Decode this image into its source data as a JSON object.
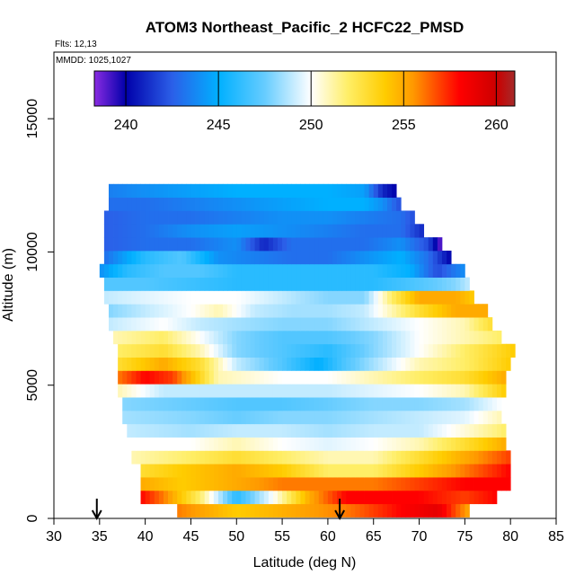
{
  "chart_data": {
    "type": "heatmap",
    "title": "ATOM3 Northeast_Pacific_2 HCFC22_PMSD",
    "annotations": [
      "Flts: 12,13",
      "MMDD: 1025,1027"
    ],
    "xlabel": "Latitude (deg N)",
    "ylabel": "Altitude (m)",
    "xlim": [
      30,
      85
    ],
    "ylim": [
      0,
      17500
    ],
    "xticks": [
      30,
      35,
      40,
      45,
      50,
      55,
      60,
      65,
      70,
      75,
      80,
      85
    ],
    "yticks": [
      0,
      5000,
      10000,
      15000
    ],
    "colorbar": {
      "range": [
        238.3,
        261.0
      ],
      "ticks": [
        240,
        245,
        250,
        255,
        260
      ],
      "stops": [
        {
          "v": 238.3,
          "c": "#8a2be2"
        },
        {
          "v": 240.0,
          "c": "#0000aa"
        },
        {
          "v": 242.5,
          "c": "#2b5fe8"
        },
        {
          "v": 245.0,
          "c": "#00b0ff"
        },
        {
          "v": 247.5,
          "c": "#66ccff"
        },
        {
          "v": 250.0,
          "c": "#ffffff"
        },
        {
          "v": 252.0,
          "c": "#ffee66"
        },
        {
          "v": 254.0,
          "c": "#ffcc00"
        },
        {
          "v": 255.5,
          "c": "#ff9900"
        },
        {
          "v": 258.0,
          "c": "#ff0000"
        },
        {
          "v": 260.0,
          "c": "#cc0000"
        },
        {
          "v": 261.0,
          "c": "#a52a2a"
        }
      ]
    },
    "arrows": [
      34.7,
      61.3
    ],
    "bands": [
      {
        "alt": 300,
        "lat0": 43.5,
        "lat1": 75.5,
        "pts": [
          [
            43.5,
            256
          ],
          [
            50,
            254
          ],
          [
            56,
            255
          ],
          [
            62,
            256
          ],
          [
            68,
            258
          ],
          [
            72,
            259
          ],
          [
            75.5,
            255
          ]
        ]
      },
      {
        "alt": 800,
        "lat0": 39.5,
        "lat1": 78.5,
        "pts": [
          [
            39.5,
            258
          ],
          [
            42,
            256
          ],
          [
            46,
            252
          ],
          [
            50,
            246
          ],
          [
            54,
            250
          ],
          [
            58,
            255
          ],
          [
            62,
            258
          ],
          [
            66,
            258
          ],
          [
            70,
            258
          ],
          [
            75,
            257
          ],
          [
            78.5,
            258
          ]
        ]
      },
      {
        "alt": 1300,
        "lat0": 39.5,
        "lat1": 80,
        "pts": [
          [
            39.5,
            255
          ],
          [
            44,
            254
          ],
          [
            50,
            255
          ],
          [
            55,
            256
          ],
          [
            60,
            256
          ],
          [
            65,
            256
          ],
          [
            70,
            257
          ],
          [
            75,
            258
          ],
          [
            80,
            258
          ]
        ]
      },
      {
        "alt": 1800,
        "lat0": 39.5,
        "lat1": 80,
        "pts": [
          [
            39.5,
            253
          ],
          [
            44,
            254
          ],
          [
            50,
            255
          ],
          [
            55,
            254
          ],
          [
            60,
            252
          ],
          [
            65,
            252
          ],
          [
            70,
            254
          ],
          [
            75,
            256
          ],
          [
            80,
            258
          ]
        ]
      },
      {
        "alt": 2300,
        "lat0": 38.5,
        "lat1": 80,
        "pts": [
          [
            38.5,
            251
          ],
          [
            45,
            252
          ],
          [
            50,
            253
          ],
          [
            55,
            252
          ],
          [
            60,
            251
          ],
          [
            65,
            251
          ],
          [
            70,
            253
          ],
          [
            75,
            255
          ],
          [
            80,
            257
          ]
        ]
      },
      {
        "alt": 2800,
        "lat0": 38,
        "lat1": 79.5,
        "pts": [
          [
            38,
            250
          ],
          [
            45,
            250
          ],
          [
            50,
            251
          ],
          [
            55,
            250
          ],
          [
            60,
            249.5
          ],
          [
            65,
            250
          ],
          [
            70,
            251
          ],
          [
            75,
            253
          ],
          [
            79.5,
            255
          ]
        ]
      },
      {
        "alt": 3300,
        "lat0": 38,
        "lat1": 79.5,
        "pts": [
          [
            38,
            249
          ],
          [
            45,
            248.5
          ],
          [
            50,
            249
          ],
          [
            55,
            249
          ],
          [
            60,
            248.5
          ],
          [
            65,
            249
          ],
          [
            70,
            249
          ],
          [
            75,
            250.5
          ],
          [
            79.5,
            252
          ]
        ]
      },
      {
        "alt": 3800,
        "lat0": 37.5,
        "lat1": 79,
        "pts": [
          [
            37.5,
            248.5
          ],
          [
            45,
            248
          ],
          [
            50,
            247.5
          ],
          [
            55,
            248
          ],
          [
            60,
            248
          ],
          [
            65,
            248.5
          ],
          [
            70,
            249
          ],
          [
            75,
            249.5
          ],
          [
            79,
            251
          ]
        ]
      },
      {
        "alt": 4300,
        "lat0": 37.5,
        "lat1": 79,
        "pts": [
          [
            37.5,
            248
          ],
          [
            45,
            247.5
          ],
          [
            50,
            247
          ],
          [
            55,
            247
          ],
          [
            60,
            247.5
          ],
          [
            65,
            248
          ],
          [
            70,
            248
          ],
          [
            75,
            248.5
          ],
          [
            79,
            250
          ]
        ]
      },
      {
        "alt": 4800,
        "lat0": 37,
        "lat1": 79.5,
        "pts": [
          [
            37,
            251
          ],
          [
            42,
            249
          ],
          [
            48,
            249
          ],
          [
            55,
            249
          ],
          [
            60,
            249
          ],
          [
            65,
            249.5
          ],
          [
            70,
            250
          ],
          [
            75,
            251
          ],
          [
            79.5,
            254
          ]
        ]
      },
      {
        "alt": 5300,
        "lat0": 37,
        "lat1": 79.5,
        "pts": [
          [
            37,
            256
          ],
          [
            40,
            258
          ],
          [
            43,
            257
          ],
          [
            48,
            251
          ],
          [
            55,
            250
          ],
          [
            60,
            250
          ],
          [
            65,
            251
          ],
          [
            70,
            252
          ],
          [
            75,
            253
          ],
          [
            79.5,
            255
          ]
        ]
      },
      {
        "alt": 5800,
        "lat0": 37,
        "lat1": 80,
        "pts": [
          [
            37,
            253
          ],
          [
            42,
            255
          ],
          [
            46,
            253
          ],
          [
            50,
            249
          ],
          [
            55,
            247
          ],
          [
            59,
            245
          ],
          [
            62,
            247
          ],
          [
            66,
            249
          ],
          [
            70,
            251
          ],
          [
            75,
            252
          ],
          [
            80,
            254
          ]
        ]
      },
      {
        "alt": 6300,
        "lat0": 37,
        "lat1": 80.5,
        "pts": [
          [
            37,
            252
          ],
          [
            42,
            253
          ],
          [
            46,
            251
          ],
          [
            50,
            248
          ],
          [
            55,
            247
          ],
          [
            60,
            246
          ],
          [
            65,
            248
          ],
          [
            70,
            250
          ],
          [
            75,
            252
          ],
          [
            80.5,
            254
          ]
        ]
      },
      {
        "alt": 6800,
        "lat0": 36.5,
        "lat1": 79,
        "pts": [
          [
            36.5,
            251
          ],
          [
            42,
            252
          ],
          [
            46,
            250
          ],
          [
            50,
            248
          ],
          [
            55,
            247
          ],
          [
            60,
            247
          ],
          [
            65,
            248
          ],
          [
            70,
            250
          ],
          [
            75,
            251
          ],
          [
            79,
            252
          ]
        ]
      },
      {
        "alt": 7300,
        "lat0": 36,
        "lat1": 78,
        "pts": [
          [
            36,
            249
          ],
          [
            42,
            250
          ],
          [
            46,
            249
          ],
          [
            50,
            248.5
          ],
          [
            55,
            248
          ],
          [
            60,
            248
          ],
          [
            65,
            249
          ],
          [
            70,
            250
          ],
          [
            75,
            251
          ],
          [
            78,
            253
          ]
        ]
      },
      {
        "alt": 7800,
        "lat0": 36,
        "lat1": 77.5,
        "pts": [
          [
            36,
            248
          ],
          [
            40,
            249
          ],
          [
            45,
            250
          ],
          [
            48,
            251
          ],
          [
            52,
            249
          ],
          [
            56,
            248.5
          ],
          [
            60,
            248.5
          ],
          [
            64,
            249
          ],
          [
            67,
            251
          ],
          [
            70,
            253
          ],
          [
            74,
            255
          ],
          [
            77.5,
            255
          ]
        ]
      },
      {
        "alt": 8300,
        "lat0": 35.5,
        "lat1": 76,
        "pts": [
          [
            35.5,
            249
          ],
          [
            40,
            249.5
          ],
          [
            45,
            250
          ],
          [
            50,
            250
          ],
          [
            55,
            249
          ],
          [
            60,
            248
          ],
          [
            64,
            248
          ],
          [
            67,
            252
          ],
          [
            70,
            255
          ],
          [
            74,
            255
          ],
          [
            76,
            254
          ]
        ]
      },
      {
        "alt": 8800,
        "lat0": 35.5,
        "lat1": 75.5,
        "pts": [
          [
            35.5,
            247
          ],
          [
            40,
            247
          ],
          [
            45,
            246.5
          ],
          [
            50,
            246
          ],
          [
            55,
            246
          ],
          [
            60,
            246
          ],
          [
            65,
            246
          ],
          [
            70,
            247
          ],
          [
            74,
            248
          ],
          [
            75.5,
            249
          ]
        ]
      },
      {
        "alt": 9300,
        "lat0": 35,
        "lat1": 75,
        "pts": [
          [
            35,
            244
          ],
          [
            38,
            246
          ],
          [
            42,
            247
          ],
          [
            46,
            247
          ],
          [
            50,
            246
          ],
          [
            55,
            246
          ],
          [
            60,
            246
          ],
          [
            65,
            246
          ],
          [
            69,
            245
          ],
          [
            72,
            242
          ],
          [
            75,
            244
          ]
        ]
      },
      {
        "alt": 9800,
        "lat0": 35.5,
        "lat1": 73.5,
        "pts": [
          [
            35.5,
            243
          ],
          [
            40,
            246
          ],
          [
            44,
            247
          ],
          [
            48,
            244
          ],
          [
            52,
            243.5
          ],
          [
            56,
            243
          ],
          [
            60,
            243
          ],
          [
            64,
            244
          ],
          [
            68,
            245
          ],
          [
            71,
            243
          ],
          [
            73.5,
            240
          ]
        ]
      },
      {
        "alt": 10300,
        "lat0": 35.5,
        "lat1": 72.5,
        "pts": [
          [
            35.5,
            242.5
          ],
          [
            40,
            243
          ],
          [
            45,
            243
          ],
          [
            50,
            244
          ],
          [
            53,
            241
          ],
          [
            56,
            243
          ],
          [
            60,
            243
          ],
          [
            64,
            243
          ],
          [
            68,
            244
          ],
          [
            71,
            242
          ],
          [
            72.5,
            238.5
          ]
        ]
      },
      {
        "alt": 10800,
        "lat0": 35.5,
        "lat1": 70.5,
        "pts": [
          [
            35.5,
            242.5
          ],
          [
            40,
            243
          ],
          [
            45,
            244
          ],
          [
            50,
            244.5
          ],
          [
            55,
            244
          ],
          [
            60,
            243.5
          ],
          [
            64,
            243
          ],
          [
            68,
            243
          ],
          [
            70.5,
            241
          ]
        ]
      },
      {
        "alt": 11300,
        "lat0": 35.5,
        "lat1": 69.5,
        "pts": [
          [
            35.5,
            242.5
          ],
          [
            40,
            243
          ],
          [
            45,
            243
          ],
          [
            50,
            243.5
          ],
          [
            55,
            244
          ],
          [
            60,
            244
          ],
          [
            64,
            243.5
          ],
          [
            68,
            243
          ],
          [
            69.5,
            242
          ]
        ]
      },
      {
        "alt": 11800,
        "lat0": 36,
        "lat1": 68,
        "pts": [
          [
            36,
            243
          ],
          [
            40,
            243
          ],
          [
            45,
            243.5
          ],
          [
            50,
            244
          ],
          [
            55,
            244.5
          ],
          [
            60,
            245
          ],
          [
            64,
            245
          ],
          [
            66,
            244
          ],
          [
            68,
            242
          ]
        ]
      },
      {
        "alt": 12300,
        "lat0": 36,
        "lat1": 67.5,
        "pts": [
          [
            36,
            243.5
          ],
          [
            40,
            244
          ],
          [
            45,
            244.5
          ],
          [
            50,
            245
          ],
          [
            55,
            245
          ],
          [
            60,
            245
          ],
          [
            64,
            244.5
          ],
          [
            66,
            241
          ],
          [
            67.5,
            240
          ]
        ]
      }
    ]
  }
}
